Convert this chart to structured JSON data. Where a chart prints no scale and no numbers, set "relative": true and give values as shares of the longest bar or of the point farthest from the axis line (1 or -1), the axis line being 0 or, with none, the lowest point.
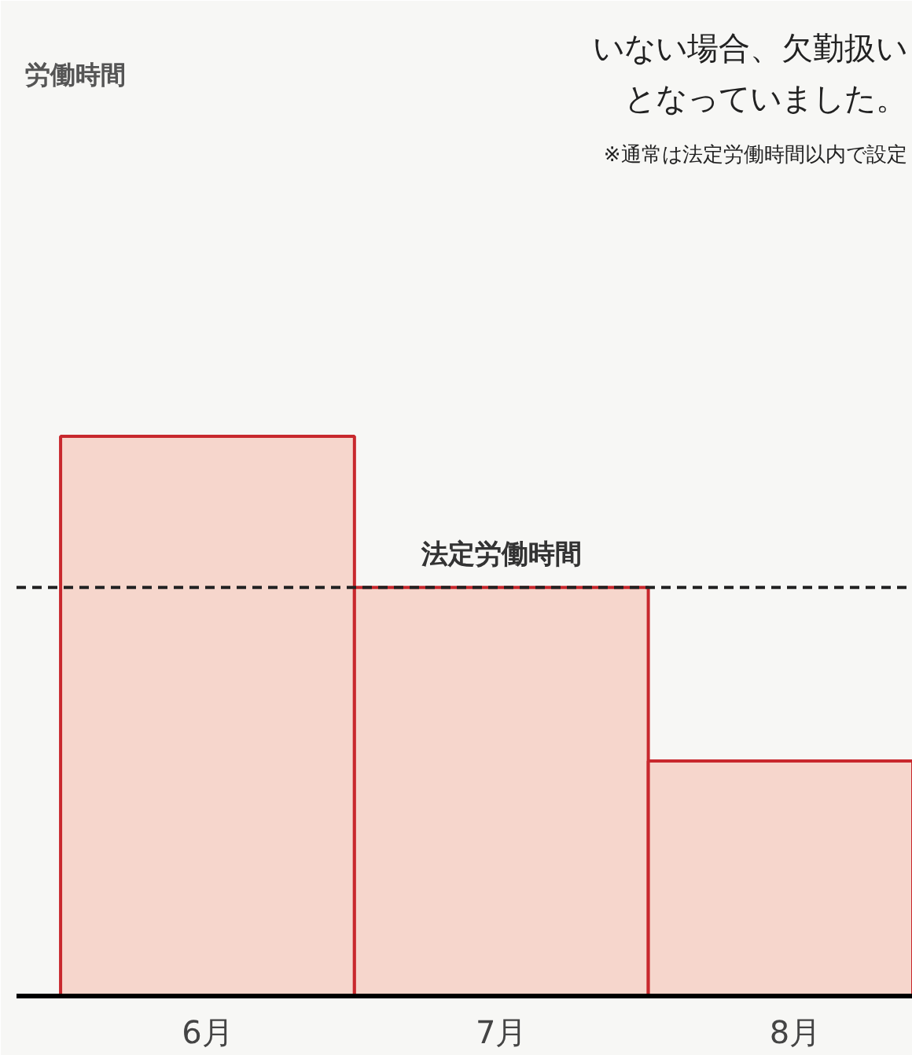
{
  "chart_data": {
    "type": "bar",
    "categories": [
      "6月",
      "7月",
      "8月"
    ],
    "relative": true,
    "color": "#f6d6cc",
    "series": [
      {
        "color": "#c8282d",
        "values": [
          1,
          0.73,
          0.42
        ]
      }
    ],
    "ref_lines": [
      {
        "axis": "y",
        "value": 0.73,
        "label": "法定労働時間",
        "line_style": "dashed",
        "color": "#222222"
      }
    ],
    "annotations": [
      "労働時間",
      "いない場合、欠勤扱い",
      "となっていました。",
      "※通常は法定労働時間以内で設定"
    ],
    "grid": false
  }
}
